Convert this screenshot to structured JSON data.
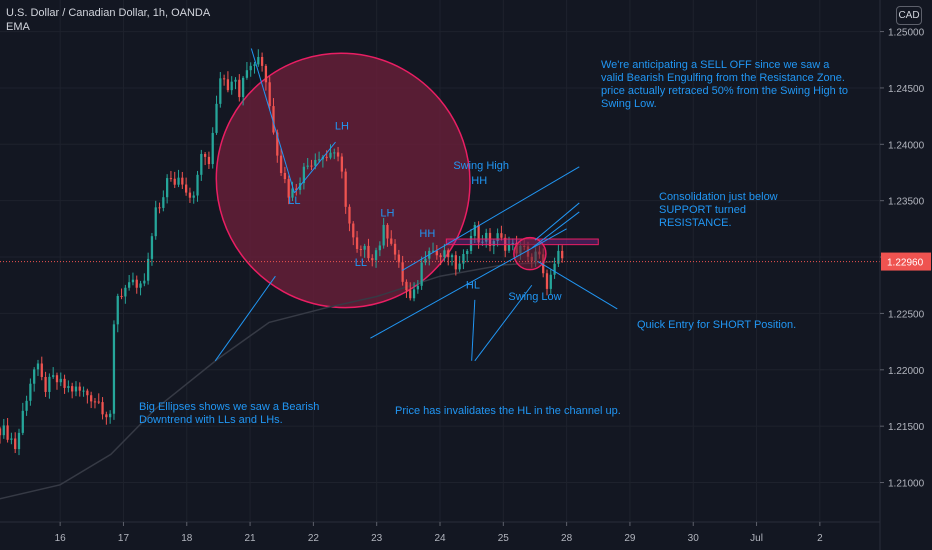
{
  "header": {
    "title": "U.S. Dollar / Canadian Dollar, 1h, OANDA",
    "indicator": "EMA",
    "currency_badge": "CAD"
  },
  "colors": {
    "background": "#131722",
    "grid": "#1e222d",
    "up_candle": "#26a69a",
    "down_candle": "#ef5350",
    "annotation": "#2196f3",
    "ellipse_fill": "#6b1f3a",
    "ellipse_stroke": "#e91e63",
    "zone_fill": "#9c27b0",
    "ema_line": "#363a45",
    "price_tag": "#ef5350"
  },
  "chart_data": {
    "type": "candlestick",
    "symbol": "U.S. Dollar / Canadian Dollar, 1h, OANDA",
    "x_axis": {
      "unit": "day",
      "ticks": [
        {
          "t": 16,
          "label": "16"
        },
        {
          "t": 17,
          "label": "17"
        },
        {
          "t": 18,
          "label": "18"
        },
        {
          "t": 19,
          "label": "21"
        },
        {
          "t": 20,
          "label": "22"
        },
        {
          "t": 21,
          "label": "23"
        },
        {
          "t": 22,
          "label": "24"
        },
        {
          "t": 23,
          "label": "25"
        },
        {
          "t": 24,
          "label": "28"
        },
        {
          "t": 25,
          "label": "29"
        },
        {
          "t": 26,
          "label": "30"
        },
        {
          "t": 27,
          "label": "Jul"
        },
        {
          "t": 28,
          "label": "2"
        }
      ],
      "range": [
        15.05,
        28.95
      ]
    },
    "y_axis": {
      "ticks": [
        "1.25000",
        "1.24500",
        "1.24000",
        "1.23500",
        "1.23000",
        "1.22500",
        "1.22000",
        "1.21500",
        "1.21000"
      ],
      "tick_values": [
        1.25,
        1.245,
        1.24,
        1.235,
        1.23,
        1.225,
        1.22,
        1.215,
        1.21
      ],
      "range": [
        1.2065,
        1.2528
      ]
    },
    "current_price": {
      "value": 1.2296,
      "label": "1.22960"
    },
    "ema": [
      [
        15.0,
        1.2085
      ],
      [
        16.0,
        1.2098
      ],
      [
        16.8,
        1.2125
      ],
      [
        17.5,
        1.2165
      ],
      [
        18.5,
        1.221
      ],
      [
        19.3,
        1.2242
      ],
      [
        20.2,
        1.2255
      ],
      [
        21.0,
        1.2265
      ],
      [
        22.0,
        1.2283
      ],
      [
        23.0,
        1.2293
      ],
      [
        23.8,
        1.2296
      ]
    ],
    "price_path": [
      [
        15.05,
        1.2148
      ],
      [
        15.2,
        1.2142
      ],
      [
        15.3,
        1.213
      ],
      [
        15.42,
        1.2165
      ],
      [
        15.52,
        1.2188
      ],
      [
        15.62,
        1.2205
      ],
      [
        15.75,
        1.2183
      ],
      [
        15.9,
        1.2192
      ],
      [
        16.05,
        1.2185
      ],
      [
        16.25,
        1.2182
      ],
      [
        16.45,
        1.2178
      ],
      [
        16.62,
        1.2171
      ],
      [
        16.72,
        1.2162
      ],
      [
        16.8,
        1.2162
      ],
      [
        16.82,
        1.2218
      ],
      [
        16.9,
        1.2262
      ],
      [
        17.0,
        1.227
      ],
      [
        17.12,
        1.2285
      ],
      [
        17.22,
        1.2265
      ],
      [
        17.35,
        1.2282
      ],
      [
        17.42,
        1.2305
      ],
      [
        17.5,
        1.2338
      ],
      [
        17.58,
        1.2345
      ],
      [
        17.68,
        1.2368
      ],
      [
        17.78,
        1.2365
      ],
      [
        17.9,
        1.2372
      ],
      [
        18.05,
        1.2355
      ],
      [
        18.15,
        1.2362
      ],
      [
        18.25,
        1.2398
      ],
      [
        18.35,
        1.2378
      ],
      [
        18.45,
        1.2432
      ],
      [
        18.55,
        1.2468
      ],
      [
        18.65,
        1.2452
      ],
      [
        18.72,
        1.2462
      ],
      [
        18.82,
        1.2445
      ],
      [
        18.92,
        1.2472
      ],
      [
        19.02,
        1.2468
      ],
      [
        19.12,
        1.248
      ],
      [
        19.22,
        1.2468
      ],
      [
        19.32,
        1.243
      ],
      [
        19.4,
        1.2405
      ],
      [
        19.48,
        1.238
      ],
      [
        19.55,
        1.2368
      ],
      [
        19.62,
        1.2355
      ],
      [
        19.72,
        1.2362
      ],
      [
        19.82,
        1.2375
      ],
      [
        19.95,
        1.2385
      ],
      [
        20.1,
        1.2392
      ],
      [
        20.22,
        1.2388
      ],
      [
        20.3,
        1.2398
      ],
      [
        20.38,
        1.2386
      ],
      [
        20.45,
        1.2372
      ],
      [
        20.52,
        1.2345
      ],
      [
        20.6,
        1.232
      ],
      [
        20.7,
        1.2302
      ],
      [
        20.8,
        1.2305
      ],
      [
        20.92,
        1.2302
      ],
      [
        21.02,
        1.2308
      ],
      [
        21.12,
        1.2325
      ],
      [
        21.22,
        1.2318
      ],
      [
        21.3,
        1.23
      ],
      [
        21.38,
        1.2285
      ],
      [
        21.48,
        1.2268
      ],
      [
        21.55,
        1.2258
      ],
      [
        21.65,
        1.2278
      ],
      [
        21.72,
        1.2296
      ],
      [
        21.82,
        1.2312
      ],
      [
        21.92,
        1.2303
      ],
      [
        22.02,
        1.23
      ],
      [
        22.12,
        1.2302
      ],
      [
        22.22,
        1.2293
      ],
      [
        22.3,
        1.229
      ],
      [
        22.38,
        1.2298
      ],
      [
        22.45,
        1.2315
      ],
      [
        22.52,
        1.2332
      ],
      [
        22.6,
        1.2315
      ],
      [
        22.7,
        1.2318
      ],
      [
        22.8,
        1.2312
      ],
      [
        22.9,
        1.2318
      ],
      [
        23.0,
        1.2312
      ],
      [
        23.1,
        1.231
      ],
      [
        23.18,
        1.2308
      ],
      [
        23.28,
        1.2306
      ],
      [
        23.38,
        1.2305
      ],
      [
        23.46,
        1.2296
      ],
      [
        23.55,
        1.2306
      ],
      [
        23.62,
        1.2282
      ],
      [
        23.7,
        1.2276
      ],
      [
        23.78,
        1.2285
      ],
      [
        23.88,
        1.2302
      ],
      [
        23.95,
        1.2296
      ]
    ]
  },
  "annotations": {
    "labels": {
      "lh1": "LH",
      "ll1": "LL",
      "lh2": "LH",
      "ll2": "LL",
      "hh1": "HH",
      "swing_high": "Swing High",
      "hh2": "HH",
      "hl": "HL",
      "swing_low": "Swing Low"
    },
    "notes": {
      "sell_off": "We're anticipating a SELL OFF since we saw a valid Bearish Engulfing from the Resistance Zone. price actually retraced 50% from the Swing High to Swing Low.",
      "consolidation": "Consolidation just below SUPPORT turned RESISTANCE.",
      "quick_entry": "Quick Entry for SHORT Position.",
      "big_ellipse": "Big Ellipses shows we saw a Bearish Downtrend with LLs and LHs.",
      "invalidated_hl": "Price has invalidates the HL in the channel up."
    }
  }
}
